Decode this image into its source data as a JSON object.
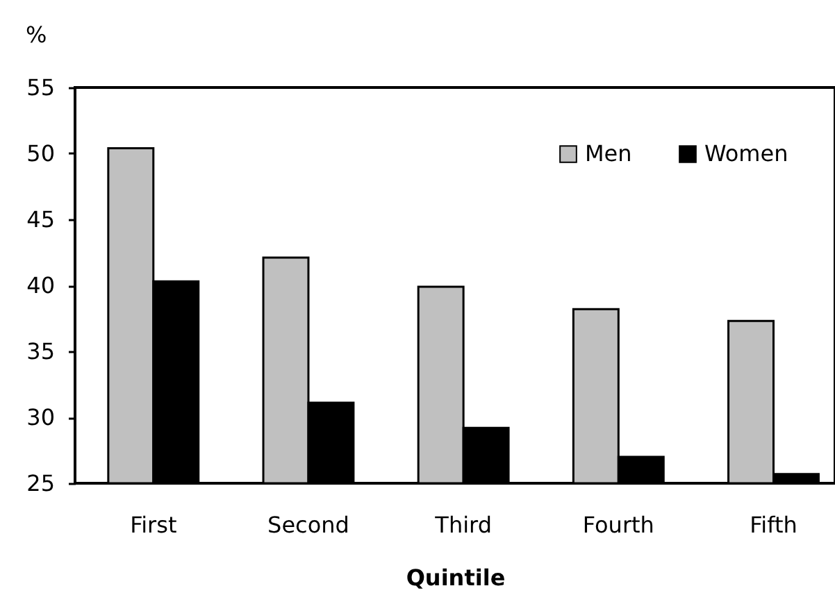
{
  "chart_data": {
    "type": "bar",
    "xlabel": "Quintile",
    "ylabel": "%",
    "categories": [
      "First",
      "Second",
      "Third",
      "Fourth",
      "Fifth"
    ],
    "series": [
      {
        "name": "Men",
        "color": "#c0c0c0",
        "values": [
          50.4,
          42.1,
          39.9,
          38.2,
          37.3
        ]
      },
      {
        "name": "Women",
        "color": "#000000",
        "values": [
          40.3,
          31.1,
          29.2,
          27.0,
          25.7
        ]
      }
    ],
    "ylim": [
      25,
      55
    ],
    "yticks": [
      25,
      30,
      35,
      40,
      45,
      50,
      55
    ],
    "grid": false,
    "legend": "top right"
  }
}
